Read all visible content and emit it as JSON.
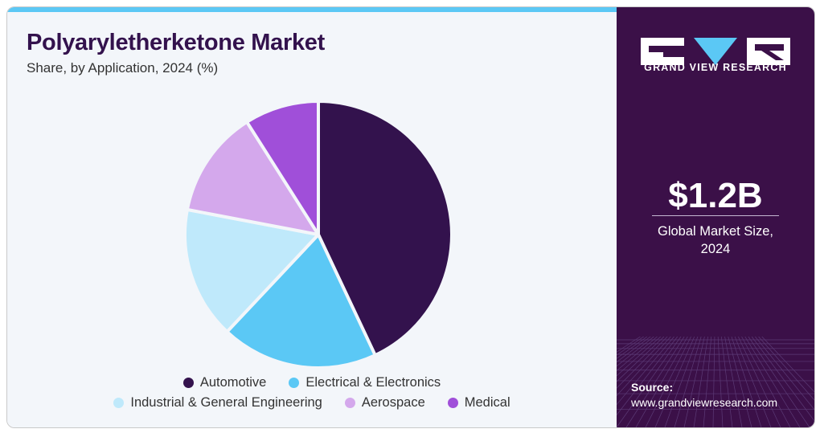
{
  "header": {
    "title": "Polyaryletherketone Market",
    "subtitle": "Share, by Application, 2024 (%)"
  },
  "chart_data": {
    "type": "pie",
    "categories": [
      "Automotive",
      "Electrical & Electronics",
      "Industrial & General Engineering",
      "Aerospace",
      "Medical"
    ],
    "values": [
      43,
      19,
      16,
      13,
      9
    ],
    "colors": [
      "#33124d",
      "#5bc8f5",
      "#bfe9fb",
      "#d4a8ec",
      "#a04fd9"
    ],
    "start_angle_deg": 0,
    "direction": "clockwise",
    "legend_position": "bottom"
  },
  "legend": {
    "row1": [
      {
        "label": "Automotive",
        "color": "#33124d"
      },
      {
        "label": "Electrical & Electronics",
        "color": "#5bc8f5"
      }
    ],
    "row2": [
      {
        "label": "Industrial & General Engineering",
        "color": "#bfe9fb"
      },
      {
        "label": "Aerospace",
        "color": "#d4a8ec"
      },
      {
        "label": "Medical",
        "color": "#a04fd9"
      }
    ]
  },
  "sidebar": {
    "brand": "GRAND VIEW RESEARCH",
    "logo_icon": "gvr-logo-icon",
    "market_size_value": "$1.2B",
    "market_size_label": "Global Market Size, 2024",
    "source_label": "Source:",
    "source_url": "www.grandviewresearch.com",
    "background_color": "#3b1048"
  }
}
